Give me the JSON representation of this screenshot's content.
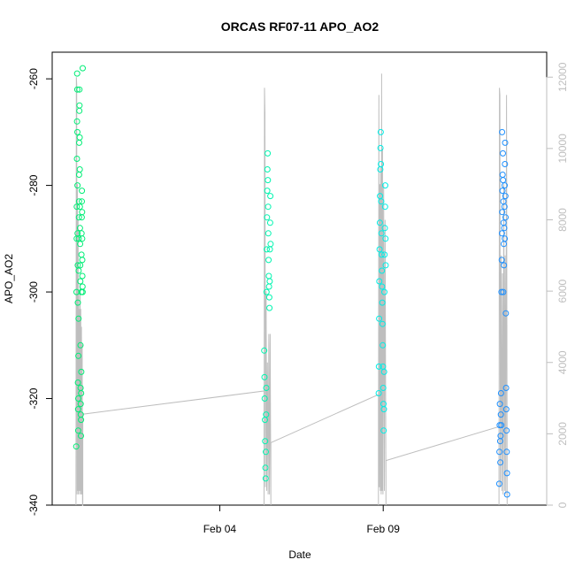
{
  "chart_data": {
    "type": "scatter",
    "title": "ORCAS RF07-11 APO_AO2",
    "xlabel": "Date",
    "ylabel": "APO_AO2",
    "x_date_range": [
      "2016-01-29T21:00",
      "2016-02-14T00:00"
    ],
    "x_ticks": [
      {
        "date": "2016-02-04",
        "label": "Feb 04"
      },
      {
        "date": "2016-02-09",
        "label": "Feb 09"
      }
    ],
    "ylim": [
      -340,
      -255
    ],
    "y_ticks": [
      -340,
      -320,
      -300,
      -280,
      -260
    ],
    "y2lim": [
      0,
      12700
    ],
    "y2_ticks": [
      0,
      2000,
      4000,
      6000,
      8000,
      10000,
      12000
    ],
    "y2_color": "#bebebe",
    "altitude_line_color": "#bebebe",
    "series": [
      {
        "color": "#00ee76",
        "flight_window": [
          "2016-01-30T14:30",
          "2016-01-30T19:30"
        ],
        "points": [
          [
            "2016-01-30T14:40",
            -329
          ],
          [
            "2016-01-30T14:50",
            -300
          ],
          [
            "2016-01-30T15:00",
            -290
          ],
          [
            "2016-01-30T15:05",
            -284
          ],
          [
            "2016-01-30T15:10",
            -275
          ],
          [
            "2016-01-30T15:15",
            -268
          ],
          [
            "2016-01-30T15:20",
            -259
          ],
          [
            "2016-01-30T15:25",
            -262
          ],
          [
            "2016-01-30T15:30",
            -270
          ],
          [
            "2016-01-30T15:35",
            -280
          ],
          [
            "2016-01-30T15:40",
            -289
          ],
          [
            "2016-01-30T15:45",
            -295
          ],
          [
            "2016-01-30T15:50",
            -302
          ],
          [
            "2016-01-30T15:55",
            -317
          ],
          [
            "2016-01-30T16:00",
            -322
          ],
          [
            "2016-01-30T16:05",
            -326
          ],
          [
            "2016-01-30T16:10",
            -320
          ],
          [
            "2016-01-30T16:15",
            -312
          ],
          [
            "2016-01-30T16:20",
            -305
          ],
          [
            "2016-01-30T16:25",
            -296
          ],
          [
            "2016-01-30T16:30",
            -290
          ],
          [
            "2016-01-30T16:35",
            -286
          ],
          [
            "2016-01-30T16:40",
            -283
          ],
          [
            "2016-01-30T16:45",
            -278
          ],
          [
            "2016-01-30T16:50",
            -272
          ],
          [
            "2016-01-30T16:55",
            -266
          ],
          [
            "2016-01-30T17:00",
            -262
          ],
          [
            "2016-01-30T17:05",
            -265
          ],
          [
            "2016-01-30T17:10",
            -271
          ],
          [
            "2016-01-30T17:15",
            -277
          ],
          [
            "2016-01-30T17:20",
            -284
          ],
          [
            "2016-01-30T17:25",
            -288
          ],
          [
            "2016-01-30T17:30",
            -291
          ],
          [
            "2016-01-30T17:35",
            -295
          ],
          [
            "2016-01-30T17:40",
            -298
          ],
          [
            "2016-01-30T17:45",
            -310
          ],
          [
            "2016-01-30T17:50",
            -318
          ],
          [
            "2016-01-30T17:55",
            -321
          ],
          [
            "2016-01-30T18:00",
            -323
          ],
          [
            "2016-01-30T18:05",
            -327
          ],
          [
            "2016-01-30T18:10",
            -324
          ],
          [
            "2016-01-30T18:15",
            -319
          ],
          [
            "2016-01-30T18:20",
            -315
          ],
          [
            "2016-01-30T18:25",
            -300
          ],
          [
            "2016-01-30T18:30",
            -293
          ],
          [
            "2016-01-30T18:35",
            -289
          ],
          [
            "2016-01-30T18:40",
            -286
          ],
          [
            "2016-01-30T18:45",
            -283
          ],
          [
            "2016-01-30T18:50",
            -281
          ],
          [
            "2016-01-30T18:55",
            -285
          ],
          [
            "2016-01-30T19:00",
            -290
          ],
          [
            "2016-01-30T19:05",
            -294
          ],
          [
            "2016-01-30T19:10",
            -297
          ],
          [
            "2016-01-30T19:15",
            -299
          ],
          [
            "2016-01-30T19:20",
            -300
          ],
          [
            "2016-01-30T19:25",
            -258
          ]
        ]
      },
      {
        "color": "#00f5b0",
        "flight_window": [
          "2016-02-05T08:30",
          "2016-02-05T13:30"
        ],
        "points": [
          [
            "2016-02-05T08:40",
            -311
          ],
          [
            "2016-02-05T08:50",
            -316
          ],
          [
            "2016-02-05T09:00",
            -320
          ],
          [
            "2016-02-05T09:10",
            -324
          ],
          [
            "2016-02-05T09:20",
            -328
          ],
          [
            "2016-02-05T09:30",
            -333
          ],
          [
            "2016-02-05T09:40",
            -335
          ],
          [
            "2016-02-05T09:50",
            -330
          ],
          [
            "2016-02-05T10:00",
            -323
          ],
          [
            "2016-02-05T10:10",
            -318
          ],
          [
            "2016-02-05T10:20",
            -300
          ],
          [
            "2016-02-05T10:30",
            -292
          ],
          [
            "2016-02-05T10:40",
            -286
          ],
          [
            "2016-02-05T10:50",
            -281
          ],
          [
            "2016-02-05T11:00",
            -277
          ],
          [
            "2016-02-05T11:10",
            -274
          ],
          [
            "2016-02-05T11:20",
            -279
          ],
          [
            "2016-02-05T11:30",
            -284
          ],
          [
            "2016-02-05T11:40",
            -289
          ],
          [
            "2016-02-05T11:50",
            -294
          ],
          [
            "2016-02-05T12:00",
            -297
          ],
          [
            "2016-02-05T12:10",
            -299
          ],
          [
            "2016-02-05T12:20",
            -301
          ],
          [
            "2016-02-05T12:30",
            -303
          ],
          [
            "2016-02-05T12:40",
            -298
          ],
          [
            "2016-02-05T12:50",
            -292
          ],
          [
            "2016-02-05T13:00",
            -287
          ],
          [
            "2016-02-05T13:10",
            -282
          ],
          [
            "2016-02-05T13:20",
            -291
          ]
        ]
      },
      {
        "color": "#00eee6",
        "flight_window": [
          "2016-02-08T20:30",
          "2016-02-09T02:00"
        ],
        "points": [
          [
            "2016-02-08T20:40",
            -319
          ],
          [
            "2016-02-08T20:50",
            -314
          ],
          [
            "2016-02-08T21:00",
            -305
          ],
          [
            "2016-02-08T21:10",
            -298
          ],
          [
            "2016-02-08T21:20",
            -292
          ],
          [
            "2016-02-08T21:30",
            -287
          ],
          [
            "2016-02-08T21:40",
            -282
          ],
          [
            "2016-02-08T21:50",
            -277
          ],
          [
            "2016-02-08T22:00",
            -273
          ],
          [
            "2016-02-08T22:10",
            -270
          ],
          [
            "2016-02-08T22:20",
            -276
          ],
          [
            "2016-02-08T22:30",
            -283
          ],
          [
            "2016-02-08T22:40",
            -289
          ],
          [
            "2016-02-08T22:50",
            -293
          ],
          [
            "2016-02-08T23:00",
            -296
          ],
          [
            "2016-02-08T23:10",
            -299
          ],
          [
            "2016-02-08T23:20",
            -302
          ],
          [
            "2016-02-08T23:30",
            -306
          ],
          [
            "2016-02-08T23:40",
            -310
          ],
          [
            "2016-02-08T23:50",
            -314
          ],
          [
            "2016-02-09T00:00",
            -318
          ],
          [
            "2016-02-09T00:10",
            -321
          ],
          [
            "2016-02-09T00:20",
            -326
          ],
          [
            "2016-02-09T00:30",
            -322
          ],
          [
            "2016-02-09T00:40",
            -315
          ],
          [
            "2016-02-09T00:50",
            -300
          ],
          [
            "2016-02-09T01:00",
            -293
          ],
          [
            "2016-02-09T01:10",
            -288
          ],
          [
            "2016-02-09T01:20",
            -284
          ],
          [
            "2016-02-09T01:30",
            -280
          ],
          [
            "2016-02-09T01:40",
            -290
          ],
          [
            "2016-02-09T01:50",
            -295
          ]
        ]
      },
      {
        "color": "#1e90ff",
        "flight_window": [
          "2016-02-12T13:00",
          "2016-02-12T19:00"
        ],
        "points": [
          [
            "2016-02-12T13:10",
            -336
          ],
          [
            "2016-02-12T13:20",
            -330
          ],
          [
            "2016-02-12T13:30",
            -325
          ],
          [
            "2016-02-12T13:40",
            -321
          ],
          [
            "2016-02-12T13:50",
            -328
          ],
          [
            "2016-02-12T14:00",
            -332
          ],
          [
            "2016-02-12T14:10",
            -327
          ],
          [
            "2016-02-12T14:20",
            -323
          ],
          [
            "2016-02-12T14:30",
            -319
          ],
          [
            "2016-02-12T14:40",
            -325
          ],
          [
            "2016-02-12T14:50",
            -300
          ],
          [
            "2016-02-12T15:00",
            -294
          ],
          [
            "2016-02-12T15:10",
            -289
          ],
          [
            "2016-02-12T15:20",
            -285
          ],
          [
            "2016-02-12T15:30",
            -281
          ],
          [
            "2016-02-12T15:40",
            -278
          ],
          [
            "2016-02-12T15:50",
            -274
          ],
          [
            "2016-02-12T16:00",
            -279
          ],
          [
            "2016-02-12T16:10",
            -283
          ],
          [
            "2016-02-12T16:20",
            -287
          ],
          [
            "2016-02-12T16:30",
            -291
          ],
          [
            "2016-02-12T16:40",
            -295
          ],
          [
            "2016-02-12T16:50",
            -288
          ],
          [
            "2016-02-12T17:00",
            -284
          ],
          [
            "2016-02-12T17:10",
            -280
          ],
          [
            "2016-02-12T17:20",
            -276
          ],
          [
            "2016-02-12T17:30",
            -272
          ],
          [
            "2016-02-12T17:40",
            -282
          ],
          [
            "2016-02-12T17:50",
            -286
          ],
          [
            "2016-02-12T18:00",
            -304
          ],
          [
            "2016-02-12T18:10",
            -318
          ],
          [
            "2016-02-12T18:20",
            -322
          ],
          [
            "2016-02-12T18:30",
            -326
          ],
          [
            "2016-02-12T18:40",
            -330
          ],
          [
            "2016-02-12T18:50",
            -334
          ],
          [
            "2016-02-12T18:55",
            -338
          ],
          [
            "2016-02-12T15:15",
            -270
          ],
          [
            "2016-02-12T17:15",
            -290
          ],
          [
            "2016-02-12T16:05",
            -300
          ]
        ]
      }
    ],
    "altitude": [
      [
        "2016-01-30T14:30",
        0
      ],
      [
        "2016-01-30T14:45",
        12000
      ],
      [
        "2016-01-30T15:00",
        11800
      ],
      [
        "2016-01-30T15:15",
        300
      ],
      [
        "2016-01-30T15:30",
        9000
      ],
      [
        "2016-01-30T15:45",
        400
      ],
      [
        "2016-01-30T16:00",
        8000
      ],
      [
        "2016-01-30T16:15",
        300
      ],
      [
        "2016-01-30T16:30",
        6000
      ],
      [
        "2016-01-30T16:45",
        400
      ],
      [
        "2016-01-30T17:00",
        5500
      ],
      [
        "2016-01-30T17:15",
        300
      ],
      [
        "2016-01-30T17:30",
        6200
      ],
      [
        "2016-01-30T17:45",
        400
      ],
      [
        "2016-01-30T18:00",
        5500
      ],
      [
        "2016-01-30T18:15",
        300
      ],
      [
        "2016-01-30T18:30",
        5000
      ],
      [
        "2016-01-30T18:45",
        300
      ],
      [
        "2016-01-30T19:00",
        4500
      ],
      [
        "2016-01-30T19:15",
        0
      ],
      [
        "2016-01-30T19:30",
        0
      ],
      [
        "2016-01-30T19:30",
        2550
      ],
      [
        "2016-02-05T08:30",
        3200
      ],
      [
        "2016-02-05T08:30",
        0
      ],
      [
        "2016-02-05T08:50",
        11700
      ],
      [
        "2016-02-05T09:10",
        11000
      ],
      [
        "2016-02-05T09:30",
        500
      ],
      [
        "2016-02-05T10:00",
        6000
      ],
      [
        "2016-02-05T10:30",
        400
      ],
      [
        "2016-02-05T11:00",
        4000
      ],
      [
        "2016-02-05T11:30",
        300
      ],
      [
        "2016-02-05T12:00",
        4800
      ],
      [
        "2016-02-05T12:30",
        300
      ],
      [
        "2016-02-05T13:00",
        4800
      ],
      [
        "2016-02-05T13:30",
        0
      ],
      [
        "2016-02-05T13:30",
        1750
      ],
      [
        "2016-02-08T20:30",
        3100
      ],
      [
        "2016-02-08T20:30",
        0
      ],
      [
        "2016-02-08T20:50",
        11500
      ],
      [
        "2016-02-08T21:10",
        500
      ],
      [
        "2016-02-08T21:30",
        9000
      ],
      [
        "2016-02-08T21:50",
        400
      ],
      [
        "2016-02-08T22:10",
        9500
      ],
      [
        "2016-02-08T22:30",
        300
      ],
      [
        "2016-02-08T22:50",
        12100
      ],
      [
        "2016-02-08T23:10",
        400
      ],
      [
        "2016-02-08T23:30",
        10000
      ],
      [
        "2016-02-08T23:50",
        300
      ],
      [
        "2016-02-09T00:20",
        9000
      ],
      [
        "2016-02-09T00:50",
        400
      ],
      [
        "2016-02-09T01:20",
        8000
      ],
      [
        "2016-02-09T02:00",
        0
      ],
      [
        "2016-02-09T02:00",
        1250
      ],
      [
        "2016-02-12T13:00",
        2200
      ],
      [
        "2016-02-12T13:00",
        0
      ],
      [
        "2016-02-12T13:20",
        11700
      ],
      [
        "2016-02-12T13:40",
        11500
      ],
      [
        "2016-02-12T14:00",
        500
      ],
      [
        "2016-02-12T14:30",
        7000
      ],
      [
        "2016-02-12T15:00",
        400
      ],
      [
        "2016-02-12T15:30",
        6500
      ],
      [
        "2016-02-12T16:00",
        300
      ],
      [
        "2016-02-12T16:30",
        9000
      ],
      [
        "2016-02-12T17:00",
        400
      ],
      [
        "2016-02-12T17:30",
        7000
      ],
      [
        "2016-02-12T18:00",
        300
      ],
      [
        "2016-02-12T18:30",
        11500
      ],
      [
        "2016-02-12T19:00",
        0
      ]
    ]
  }
}
